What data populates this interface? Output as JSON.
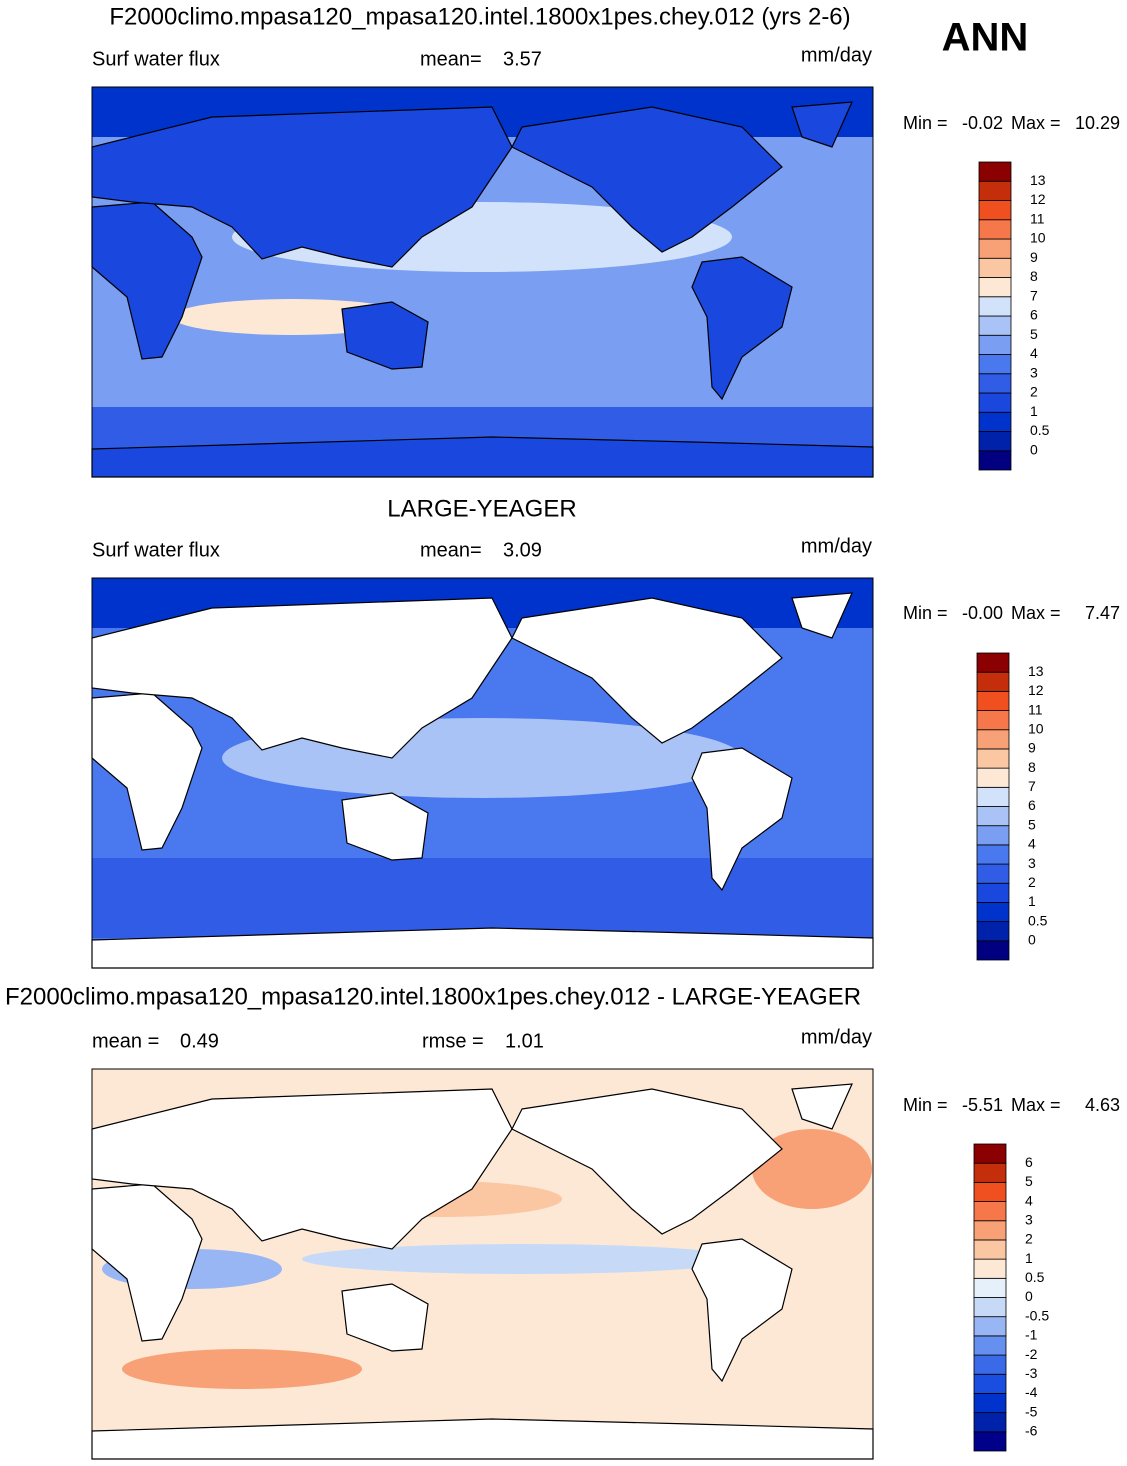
{
  "season": "ANN",
  "panels": [
    {
      "title": "F2000climo.mpasa120_mpasa120.intel.1800x1pes.chey.012 (yrs 2-6)",
      "left_label": "Surf water flux",
      "stats": [
        {
          "label": "mean=",
          "value": "3.57"
        }
      ],
      "units": "mm/day",
      "min_label": "Min =",
      "min_value": "-0.02",
      "max_label": "Max =",
      "max_value": "10.29",
      "colorbar": {
        "levels": [
          0,
          0.5,
          1,
          2,
          3,
          4,
          5,
          6,
          7,
          8,
          9,
          10,
          11,
          12,
          13
        ],
        "colors": [
          "#000080",
          "#0022aa",
          "#0033cc",
          "#1a47dd",
          "#305ce6",
          "#4a78ee",
          "#7a9ef2",
          "#a9c3f6",
          "#d2e2fa",
          "#fde8d6",
          "#fbc6a2",
          "#f8a176",
          "#f6784a",
          "#f05020",
          "#c52e0a",
          "#8b0000"
        ]
      }
    },
    {
      "title": "LARGE-YEAGER",
      "left_label": "Surf water flux",
      "stats": [
        {
          "label": "mean=",
          "value": "3.09"
        }
      ],
      "units": "mm/day",
      "min_label": "Min =",
      "min_value": "-0.00",
      "max_label": "Max =",
      "max_value": "7.47",
      "colorbar": {
        "levels": [
          0,
          0.5,
          1,
          2,
          3,
          4,
          5,
          6,
          7,
          8,
          9,
          10,
          11,
          12,
          13
        ],
        "colors": [
          "#000080",
          "#0022aa",
          "#0033cc",
          "#1a47dd",
          "#305ce6",
          "#4a78ee",
          "#7a9ef2",
          "#a9c3f6",
          "#d2e2fa",
          "#fde8d6",
          "#fbc6a2",
          "#f8a176",
          "#f6784a",
          "#f05020",
          "#c52e0a",
          "#8b0000"
        ]
      }
    },
    {
      "title": "F2000climo.mpasa120_mpasa120.intel.1800x1pes.chey.012 - LARGE-YEAGER",
      "stats": [
        {
          "label": "mean =",
          "value": "0.49"
        },
        {
          "label": "rmse =",
          "value": "1.01"
        }
      ],
      "units": "mm/day",
      "min_label": "Min =",
      "min_value": "-5.51",
      "max_label": "Max =",
      "max_value": "4.63",
      "colorbar": {
        "levels": [
          -6,
          -5,
          -4,
          -3,
          -2,
          -1,
          -0.5,
          0,
          0.5,
          1,
          2,
          3,
          4,
          5,
          6
        ],
        "colors": [
          "#00008b",
          "#0022aa",
          "#0033cc",
          "#1a4ee0",
          "#3a6ae8",
          "#6690f0",
          "#98b6f4",
          "#c6daf8",
          "#e6f0fb",
          "#fde8d6",
          "#fbc6a2",
          "#f8a176",
          "#f6784a",
          "#f05020",
          "#c52e0a",
          "#8b0000"
        ]
      }
    }
  ]
}
